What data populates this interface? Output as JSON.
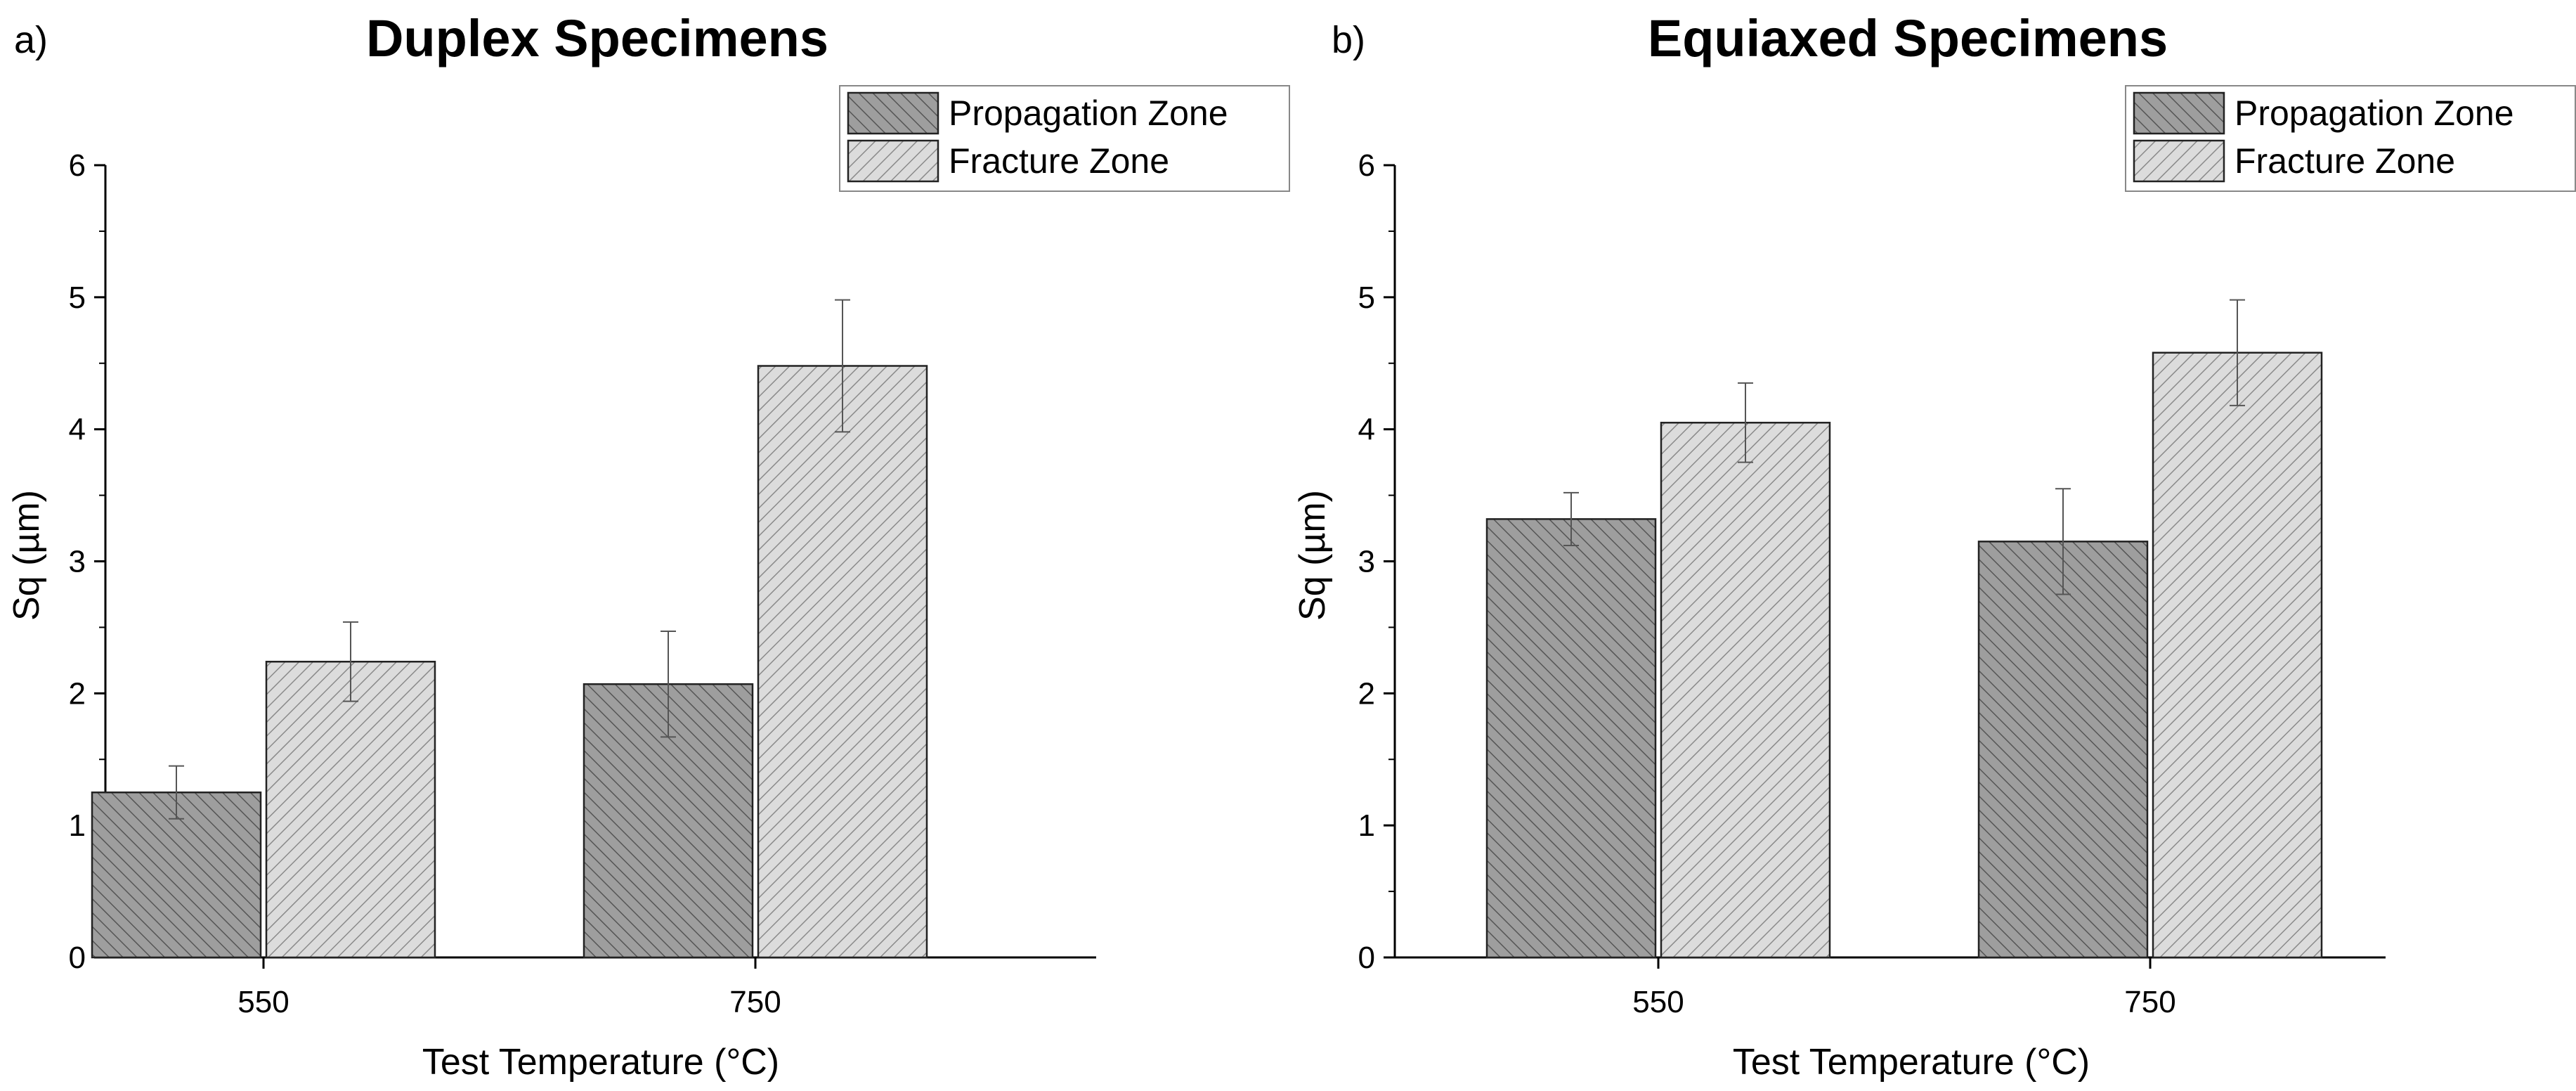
{
  "chart_data": [
    {
      "type": "bar",
      "panel_label": "a)",
      "title": "Duplex Specimens",
      "xlabel": "Test Temperature (°C)",
      "ylabel": "Sq (µm)",
      "ylim": [
        0,
        6
      ],
      "yticks": [
        "0",
        "1",
        "2",
        "3",
        "4",
        "5",
        "6"
      ],
      "categories": [
        "550",
        "750"
      ],
      "legend_position": "top-right",
      "series": [
        {
          "name": "Propagation Zone",
          "color": "#9e9e9e",
          "values": [
            1.25,
            2.07
          ],
          "errors": [
            0.2,
            0.4
          ]
        },
        {
          "name": "Fracture Zone",
          "color": "#dcdcdc",
          "values": [
            2.24,
            4.48
          ],
          "errors": [
            0.3,
            0.5
          ]
        }
      ]
    },
    {
      "type": "bar",
      "panel_label": "b)",
      "title": "Equiaxed Specimens",
      "xlabel": "Test Temperature (°C)",
      "ylabel": "Sq (µm)",
      "ylim": [
        0,
        6
      ],
      "yticks": [
        "0",
        "1",
        "2",
        "3",
        "4",
        "5",
        "6"
      ],
      "categories": [
        "550",
        "750"
      ],
      "legend_position": "top-right",
      "series": [
        {
          "name": "Propagation Zone",
          "color": "#9e9e9e",
          "values": [
            3.32,
            3.15
          ],
          "errors": [
            0.2,
            0.4
          ]
        },
        {
          "name": "Fracture Zone",
          "color": "#dcdcdc",
          "values": [
            4.05,
            4.58
          ],
          "errors": [
            0.3,
            0.4
          ]
        }
      ]
    }
  ]
}
